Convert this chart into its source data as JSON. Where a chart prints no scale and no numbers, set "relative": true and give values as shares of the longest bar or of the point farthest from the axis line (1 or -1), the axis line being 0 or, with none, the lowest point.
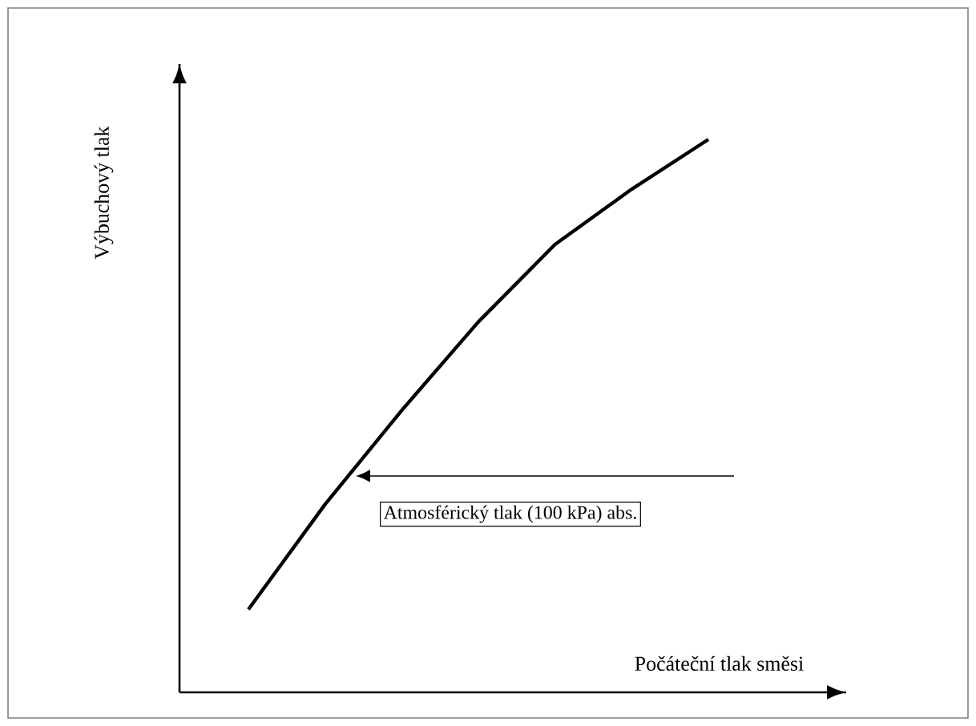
{
  "chart_data": {
    "type": "line",
    "relative": true,
    "xlabel": "Počáteční tlak směsi",
    "ylabel": "Výbuchový tlak",
    "categories": [
      null,
      null,
      null,
      null,
      null,
      null,
      null
    ],
    "series": [
      {
        "color": "#000000",
        "values": [
          0.15,
          0.34,
          0.51,
          0.67,
          0.81,
          0.91,
          1.0
        ]
      }
    ],
    "annotations": [
      "Atmosférický tlak (100 kPa) abs."
    ]
  }
}
